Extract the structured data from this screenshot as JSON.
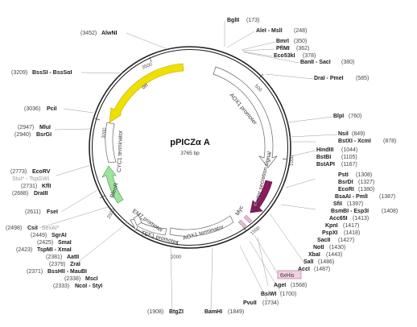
{
  "title": "pPICZα A",
  "subtitle": "3765 bp",
  "colors": {
    "backbone": "#222222",
    "ori": "#f0e000",
    "bleo": "#9ee39e",
    "alpha_factor": "#8b1a5e",
    "myc": "#e3b9cf",
    "his_tag_fill": "#f2d0e2",
    "his_tag_stroke": "#b06a95",
    "lead_line": "#9a9a9a"
  },
  "ticks": [
    {
      "label": "500"
    },
    {
      "label": "1000"
    },
    {
      "label": "1500"
    },
    {
      "label": "2000"
    },
    {
      "label": "2500"
    },
    {
      "label": "3000"
    },
    {
      "label": "3500"
    }
  ],
  "features": [
    {
      "id": "aox1-promoter",
      "label": "AOX1 promoter"
    },
    {
      "id": "alpha-factor",
      "label": "α-factor secretion signal"
    },
    {
      "id": "alpha-short",
      "label": "α-f..."
    },
    {
      "id": "myc",
      "label": "Myc"
    },
    {
      "id": "his",
      "label": "6xHis"
    },
    {
      "id": "aox1-terminator",
      "label": "AOX1 terminator"
    },
    {
      "id": "tef1",
      "label": "TEF1 promoter"
    },
    {
      "id": "em7",
      "label": "EM7 promoter"
    },
    {
      "id": "bleo",
      "label": "BleoR"
    },
    {
      "id": "cyc1",
      "label": "CYC1 terminator"
    },
    {
      "id": "ori",
      "label": "ori"
    }
  ],
  "sites_right": [
    {
      "name": "BglII",
      "pos": "(173)"
    },
    {
      "name": "AleI - MslI",
      "pos": "(248)"
    },
    {
      "name": "BmrI",
      "pos": "(350)"
    },
    {
      "name": "PflMI",
      "pos": "(362)"
    },
    {
      "name": "Eco53kI",
      "pos": "(378)"
    },
    {
      "name": "BanII - SacI",
      "pos": "(380)"
    },
    {
      "name": "DraI - PmeI",
      "pos": "(585)"
    },
    {
      "name": "BlpI",
      "pos": "(760)"
    },
    {
      "name": "NsiI",
      "pos": "(849)"
    },
    {
      "name": "BstXI - XcmI",
      "pos": "(878)"
    },
    {
      "name": "HindIII",
      "pos": "(1044)"
    },
    {
      "name": "BstBI",
      "pos": "(1105)"
    },
    {
      "name": "BstAPI",
      "pos": "(1167)"
    },
    {
      "name": "PstI",
      "pos": "(1308)"
    },
    {
      "name": "BsrDI",
      "pos": "(1327)"
    },
    {
      "name": "EcoRI",
      "pos": "(1380)"
    },
    {
      "name": "BsaAI - PmlI",
      "pos": "(1387)"
    },
    {
      "name": "SfiI",
      "pos": "(1397)"
    },
    {
      "name": "BsmBI - Esp3I",
      "pos": "(1408)"
    },
    {
      "name": "Acc65I",
      "pos": "(1413)"
    },
    {
      "name": "KpnI",
      "pos": "(1417)"
    },
    {
      "name": "PspXI",
      "pos": "(1418)"
    },
    {
      "name": "SacII",
      "pos": "(1427)"
    },
    {
      "name": "NotI",
      "pos": "(1430)"
    },
    {
      "name": "XbaI",
      "pos": "(1443)"
    },
    {
      "name": "SalI",
      "pos": "(1486)"
    },
    {
      "name": "AccI",
      "pos": "(1487)"
    },
    {
      "name": "AgeI",
      "pos": "(1568)"
    },
    {
      "name": "BsiWI",
      "pos": "(1700)"
    },
    {
      "name": "PvuII",
      "pos": "(1734)"
    },
    {
      "name": "BamHI",
      "pos": "(1849)"
    }
  ],
  "sites_left": [
    {
      "name": "AlwNI",
      "pos": "(3452)"
    },
    {
      "name": "BssSI - BssSαI",
      "pos": "(3209)"
    },
    {
      "name": "PciI",
      "pos": "(3036)"
    },
    {
      "name": "MluI",
      "pos": "(2947)"
    },
    {
      "name": "BsrGI",
      "pos": "(2940)"
    },
    {
      "name": "EcoRV",
      "pos": "(2773)"
    },
    {
      "name": "StuI* - TspGWI",
      "pos": ""
    },
    {
      "name": "KflI",
      "pos": "(2731)"
    },
    {
      "name": "DraIII",
      "pos": "(2688)"
    },
    {
      "name": "FseI",
      "pos": "(2611)"
    },
    {
      "name": "CsiI",
      "pos": "(2498)"
    },
    {
      "name": "SexAI*",
      "pos": ""
    },
    {
      "name": "SgrAI",
      "pos": "(2449)"
    },
    {
      "name": "SmaI",
      "pos": "(2425)"
    },
    {
      "name": "TspMI - XmaI",
      "pos": "(2423)"
    },
    {
      "name": "AatII",
      "pos": "(2381)"
    },
    {
      "name": "ZraI",
      "pos": "(2379)"
    },
    {
      "name": "BssHII - MauBI",
      "pos": "(2371)"
    },
    {
      "name": "MscI",
      "pos": "(2338)"
    },
    {
      "name": "NcoI - StyI",
      "pos": "(2333)"
    },
    {
      "name": "BtgZI",
      "pos": "(1908)"
    }
  ]
}
